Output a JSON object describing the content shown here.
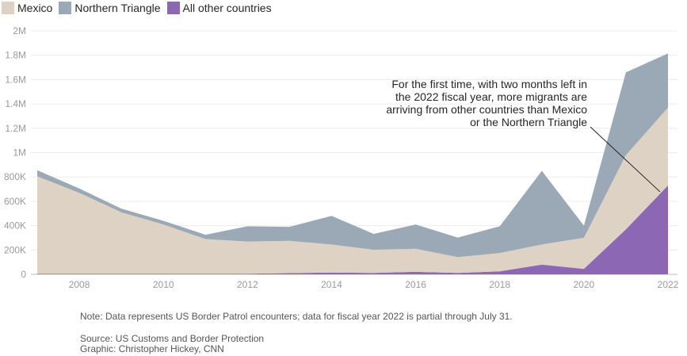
{
  "chart_data": {
    "type": "area",
    "stacked": true,
    "x": [
      2007,
      2008,
      2009,
      2010,
      2011,
      2012,
      2013,
      2014,
      2015,
      2016,
      2017,
      2018,
      2019,
      2020,
      2021,
      2022
    ],
    "xticks": [
      "2008",
      "2010",
      "2012",
      "2014",
      "2016",
      "2018",
      "2020",
      "2022"
    ],
    "ylim": [
      0,
      2000000
    ],
    "yticks": [
      "0",
      "200K",
      "400K",
      "600K",
      "800K",
      "1M",
      "1.2M",
      "1.4M",
      "1.6M",
      "1.8M",
      "2M"
    ],
    "series": [
      {
        "name": "All other countries",
        "color": "#8c67b3",
        "values": [
          5000,
          5000,
          5000,
          5000,
          5000,
          5000,
          10000,
          15000,
          12000,
          20000,
          12000,
          25000,
          80000,
          45000,
          370000,
          730000
        ]
      },
      {
        "name": "Mexico",
        "color": "#ddd2c3",
        "values": [
          800000,
          665000,
          505000,
          405000,
          285000,
          265000,
          265000,
          230000,
          190000,
          190000,
          130000,
          150000,
          165000,
          255000,
          610000,
          640000
        ]
      },
      {
        "name": "Northern Triangle",
        "color": "#9ba8b5",
        "values": [
          50000,
          35000,
          30000,
          30000,
          35000,
          125000,
          115000,
          235000,
          130000,
          200000,
          160000,
          220000,
          605000,
          100000,
          680000,
          445000
        ]
      }
    ],
    "grid": true,
    "legend_position": "top-left",
    "annotation": [
      "For the first time, with two months left in",
      "the 2022 fiscal year, more migrants are",
      "arriving from other countries than Mexico",
      "or the Northern Triangle"
    ]
  },
  "legend": [
    {
      "label": "Mexico",
      "color": "#ddd2c3"
    },
    {
      "label": "Northern Triangle",
      "color": "#9ba8b5"
    },
    {
      "label": "All other countries",
      "color": "#8c67b3"
    }
  ],
  "footer": {
    "note": "Note: Data represents US Border Patrol encounters; data for fiscal year 2022 is partial through July 31.",
    "source": "Source: US Customs and Border Protection",
    "credit": "Graphic: Christopher Hickey, CNN"
  }
}
